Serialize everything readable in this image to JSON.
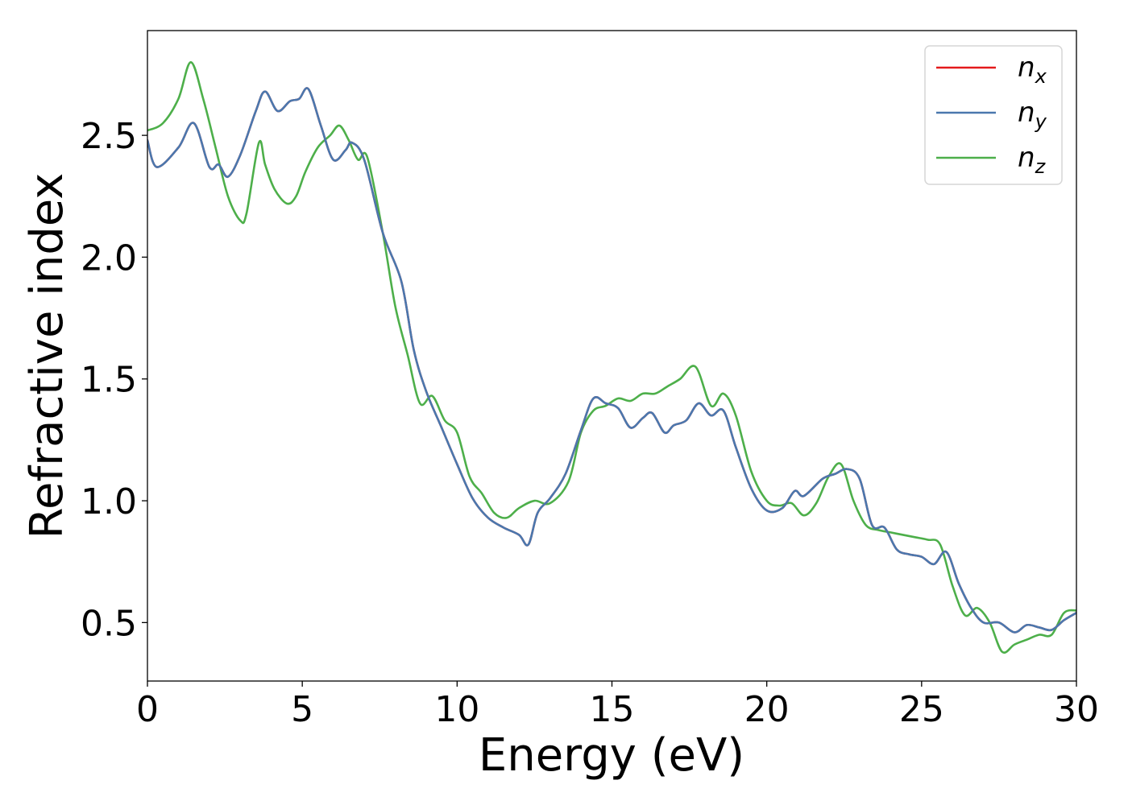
{
  "chart_data": {
    "type": "line",
    "xlabel": "Energy (eV)",
    "ylabel": "Refractive index",
    "xlim": [
      0,
      30
    ],
    "ylim": [
      0.26,
      2.93
    ],
    "xticks": [
      0,
      5,
      10,
      15,
      20,
      25,
      30
    ],
    "xtick_labels": [
      "0",
      "5",
      "10",
      "15",
      "20",
      "25",
      "30"
    ],
    "yticks": [
      0.5,
      1.0,
      1.5,
      2.0,
      2.5
    ],
    "ytick_labels": [
      "0.5",
      "1.0",
      "1.5",
      "2.0",
      "2.5"
    ],
    "grid": false,
    "legend_position": "top-right",
    "series": [
      {
        "name": "n_x",
        "label_base": "n",
        "label_sub": "x",
        "color": "#e41a1c",
        "x": [
          0,
          0.3,
          1.0,
          1.5,
          2.0,
          2.3,
          2.6,
          3.0,
          3.5,
          3.8,
          4.2,
          4.6,
          4.9,
          5.2,
          5.6,
          6.0,
          6.4,
          6.6,
          7.0,
          7.6,
          8.2,
          8.6,
          9.0,
          9.5,
          10.0,
          10.5,
          11.0,
          11.5,
          12.0,
          12.3,
          12.6,
          13.0,
          13.5,
          14.0,
          14.4,
          14.8,
          15.2,
          15.6,
          16.0,
          16.3,
          16.7,
          17.0,
          17.4,
          17.8,
          18.2,
          18.6,
          19.0,
          19.5,
          20.0,
          20.5,
          20.9,
          21.2,
          21.8,
          22.2,
          22.6,
          23.0,
          23.4,
          23.8,
          24.2,
          24.6,
          25.0,
          25.4,
          25.8,
          26.2,
          26.6,
          27.0,
          27.5,
          28.0,
          28.4,
          28.8,
          29.2,
          29.6,
          30.0
        ],
        "values": [
          2.48,
          2.37,
          2.45,
          2.55,
          2.37,
          2.38,
          2.33,
          2.42,
          2.6,
          2.68,
          2.6,
          2.64,
          2.65,
          2.69,
          2.54,
          2.4,
          2.44,
          2.47,
          2.4,
          2.1,
          1.9,
          1.62,
          1.45,
          1.3,
          1.15,
          1.01,
          0.93,
          0.89,
          0.86,
          0.82,
          0.95,
          1.01,
          1.11,
          1.29,
          1.42,
          1.4,
          1.38,
          1.3,
          1.34,
          1.36,
          1.28,
          1.31,
          1.33,
          1.4,
          1.35,
          1.37,
          1.22,
          1.05,
          0.96,
          0.97,
          1.04,
          1.02,
          1.09,
          1.11,
          1.13,
          1.09,
          0.9,
          0.89,
          0.8,
          0.78,
          0.77,
          0.74,
          0.79,
          0.66,
          0.56,
          0.5,
          0.5,
          0.46,
          0.49,
          0.48,
          0.47,
          0.51,
          0.54
        ]
      },
      {
        "name": "n_y",
        "label_base": "n",
        "label_sub": "y",
        "color": "#4a78ae",
        "x": [
          0,
          0.3,
          1.0,
          1.5,
          2.0,
          2.3,
          2.6,
          3.0,
          3.5,
          3.8,
          4.2,
          4.6,
          4.9,
          5.2,
          5.6,
          6.0,
          6.4,
          6.6,
          7.0,
          7.6,
          8.2,
          8.6,
          9.0,
          9.5,
          10.0,
          10.5,
          11.0,
          11.5,
          12.0,
          12.3,
          12.6,
          13.0,
          13.5,
          14.0,
          14.4,
          14.8,
          15.2,
          15.6,
          16.0,
          16.3,
          16.7,
          17.0,
          17.4,
          17.8,
          18.2,
          18.6,
          19.0,
          19.5,
          20.0,
          20.5,
          20.9,
          21.2,
          21.8,
          22.2,
          22.6,
          23.0,
          23.4,
          23.8,
          24.2,
          24.6,
          25.0,
          25.4,
          25.8,
          26.2,
          26.6,
          27.0,
          27.5,
          28.0,
          28.4,
          28.8,
          29.2,
          29.6,
          30.0
        ],
        "values": [
          2.48,
          2.37,
          2.45,
          2.55,
          2.37,
          2.38,
          2.33,
          2.42,
          2.6,
          2.68,
          2.6,
          2.64,
          2.65,
          2.69,
          2.54,
          2.4,
          2.44,
          2.47,
          2.4,
          2.1,
          1.9,
          1.62,
          1.45,
          1.3,
          1.15,
          1.01,
          0.93,
          0.89,
          0.86,
          0.82,
          0.95,
          1.01,
          1.11,
          1.29,
          1.42,
          1.4,
          1.38,
          1.3,
          1.34,
          1.36,
          1.28,
          1.31,
          1.33,
          1.4,
          1.35,
          1.37,
          1.22,
          1.05,
          0.96,
          0.97,
          1.04,
          1.02,
          1.09,
          1.11,
          1.13,
          1.09,
          0.9,
          0.89,
          0.8,
          0.78,
          0.77,
          0.74,
          0.79,
          0.66,
          0.56,
          0.5,
          0.5,
          0.46,
          0.49,
          0.48,
          0.47,
          0.51,
          0.54
        ]
      },
      {
        "name": "n_z",
        "label_base": "n",
        "label_sub": "z",
        "color": "#4daf4a",
        "x": [
          0,
          0.5,
          1.0,
          1.4,
          1.8,
          2.2,
          2.6,
          3.0,
          3.2,
          3.6,
          3.8,
          4.1,
          4.5,
          4.8,
          5.1,
          5.5,
          5.9,
          6.2,
          6.5,
          6.8,
          7.1,
          7.6,
          8.0,
          8.4,
          8.8,
          9.2,
          9.6,
          10.0,
          10.4,
          10.8,
          11.2,
          11.6,
          12.0,
          12.5,
          13.0,
          13.6,
          14.0,
          14.4,
          14.8,
          15.2,
          15.6,
          16.0,
          16.4,
          16.8,
          17.2,
          17.7,
          18.2,
          18.6,
          19.0,
          19.5,
          20.0,
          20.4,
          20.8,
          21.2,
          21.6,
          22.0,
          22.4,
          22.8,
          23.2,
          23.6,
          24.0,
          24.4,
          24.8,
          25.2,
          25.6,
          26.0,
          26.4,
          26.8,
          27.2,
          27.6,
          28.0,
          28.4,
          28.8,
          29.2,
          29.6,
          30.0
        ],
        "values": [
          2.52,
          2.55,
          2.65,
          2.8,
          2.65,
          2.45,
          2.25,
          2.15,
          2.18,
          2.47,
          2.38,
          2.28,
          2.22,
          2.25,
          2.35,
          2.45,
          2.5,
          2.54,
          2.48,
          2.4,
          2.41,
          2.1,
          1.8,
          1.6,
          1.4,
          1.43,
          1.33,
          1.28,
          1.1,
          1.03,
          0.95,
          0.93,
          0.97,
          1.0,
          0.99,
          1.08,
          1.28,
          1.37,
          1.39,
          1.42,
          1.41,
          1.44,
          1.44,
          1.47,
          1.5,
          1.55,
          1.39,
          1.44,
          1.35,
          1.12,
          1.0,
          0.98,
          0.99,
          0.94,
          0.99,
          1.1,
          1.15,
          1.0,
          0.9,
          0.88,
          0.87,
          0.86,
          0.85,
          0.84,
          0.82,
          0.65,
          0.53,
          0.56,
          0.5,
          0.38,
          0.41,
          0.43,
          0.45,
          0.45,
          0.54,
          0.55
        ]
      }
    ]
  }
}
